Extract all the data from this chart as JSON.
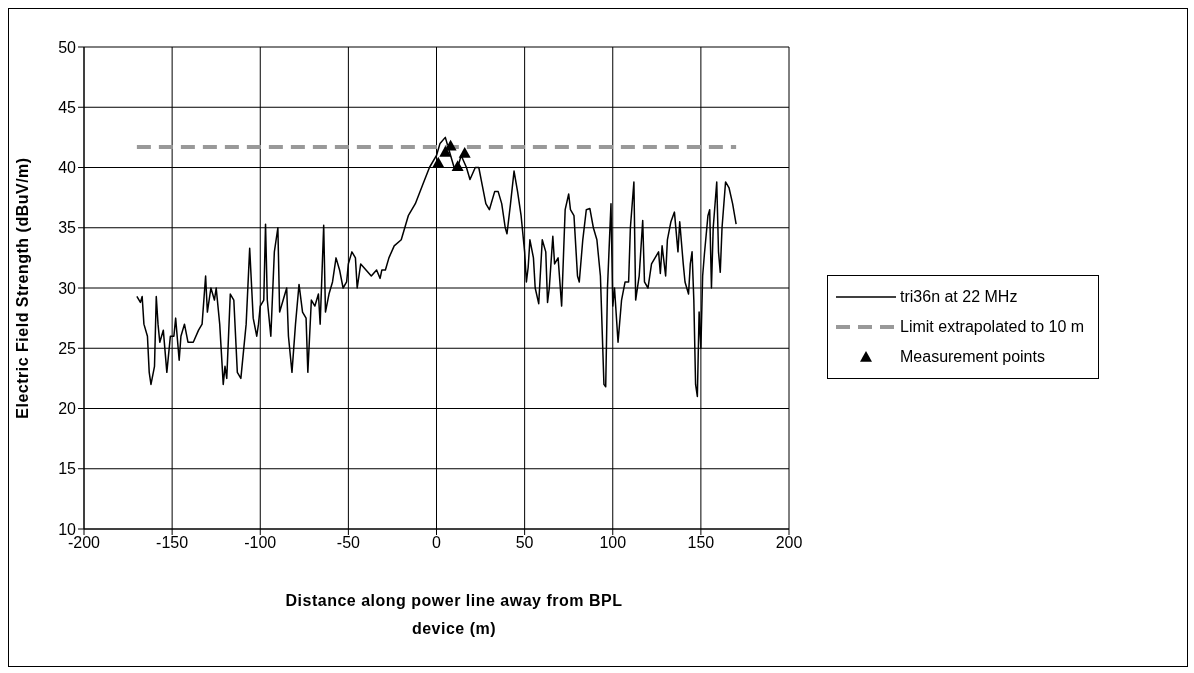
{
  "chart_data": {
    "type": "line",
    "xlabel": "Distance along power line away from BPL device (m)",
    "ylabel": "Electric Field Strength (dBuV/m)",
    "xlim": [
      -200,
      200
    ],
    "xticks": [
      -200,
      -150,
      -100,
      -50,
      0,
      50,
      100,
      150,
      200
    ],
    "ylim": [
      10,
      50
    ],
    "yticks": [
      10,
      15,
      20,
      25,
      30,
      35,
      40,
      45,
      50
    ],
    "grid": true,
    "legend": "right",
    "series": [
      {
        "name": "tri36n at 22 MHz",
        "color": "#000000",
        "line_style": "solid",
        "marker": "none",
        "x": [
          -170,
          -168,
          -167,
          -166,
          -164,
          -163,
          -162,
          -160,
          -159,
          -158,
          -157,
          -155,
          -153,
          -151,
          -149,
          -148,
          -146,
          -145,
          -143,
          -141,
          -138,
          -135,
          -133,
          -131,
          -130,
          -128,
          -126,
          -125,
          -123,
          -121,
          -120,
          -119,
          -117,
          -115,
          -113,
          -111,
          -108,
          -106,
          -104,
          -102,
          -101,
          -100,
          -98,
          -97,
          -96,
          -94,
          -92,
          -90,
          -89,
          -87,
          -85,
          -84,
          -82,
          -80,
          -78,
          -76,
          -74,
          -73,
          -71,
          -69,
          -67,
          -66,
          -64,
          -63,
          -61,
          -59,
          -57,
          -55,
          -53,
          -51,
          -50,
          -48,
          -46,
          -45,
          -43,
          -40,
          -37,
          -34,
          -32,
          -31,
          -29,
          -27,
          -24,
          -20,
          -16,
          -12,
          -8,
          -4,
          0,
          2,
          5,
          8,
          10,
          12,
          14,
          17,
          19,
          22,
          24,
          26,
          28,
          30,
          33,
          35,
          37,
          39,
          40,
          42,
          44,
          46,
          48,
          50,
          51,
          52,
          53,
          55,
          56,
          58,
          60,
          62,
          63,
          64,
          66,
          67,
          69,
          71,
          73,
          75,
          76,
          78,
          80,
          81,
          83,
          85,
          87,
          89,
          91,
          93,
          95,
          96,
          97,
          99,
          100,
          101,
          103,
          105,
          107,
          109,
          110,
          112,
          113,
          115,
          117,
          118,
          120,
          122,
          124,
          126,
          127,
          128,
          130,
          131,
          133,
          135,
          137,
          138,
          140,
          141,
          143,
          144,
          145,
          146,
          147,
          148,
          149,
          150,
          151,
          152,
          154,
          155,
          156,
          157,
          159,
          160,
          161,
          162,
          164,
          166,
          168,
          170
        ],
        "values": [
          29.3,
          28.8,
          29.3,
          27,
          26,
          23,
          22,
          23.5,
          29.3,
          27,
          25.5,
          26.5,
          23,
          26,
          26,
          27.5,
          24,
          26,
          27,
          25.5,
          25.5,
          26.5,
          27,
          31,
          28,
          30,
          29,
          30,
          27,
          22,
          23.5,
          22.5,
          29.5,
          29,
          23,
          22.5,
          27,
          33.3,
          27.5,
          26,
          27,
          28.5,
          29,
          35.3,
          29,
          26,
          33,
          35,
          28,
          29,
          30,
          26,
          23,
          27,
          30.3,
          28,
          27.5,
          23,
          29,
          28.5,
          29.5,
          27,
          35.2,
          28,
          29.5,
          30.5,
          32.5,
          31.5,
          30,
          30.5,
          32,
          33,
          32.5,
          30,
          32,
          31.5,
          31,
          31.5,
          30.8,
          31.5,
          31.5,
          32.5,
          33.5,
          34,
          36,
          37,
          38.5,
          40,
          41,
          42,
          42.5,
          41,
          40,
          40,
          41,
          40,
          39,
          40,
          40,
          38.5,
          37,
          36.5,
          38,
          38,
          37,
          35,
          34.5,
          37,
          39.7,
          38,
          36,
          33,
          30.5,
          31.7,
          34,
          32.5,
          30,
          28.7,
          34,
          33,
          28.8,
          30,
          34.3,
          32,
          32.5,
          28.5,
          36.5,
          37.8,
          36.5,
          36,
          31,
          30.5,
          34,
          36.5,
          36.6,
          35,
          34,
          31,
          22,
          21.8,
          30,
          37,
          28.5,
          30,
          25.5,
          29,
          30.5,
          30.5,
          35,
          38.8,
          29,
          31,
          35.6,
          30.5,
          30,
          32,
          32.5,
          33,
          31.2,
          33.5,
          31,
          34,
          35.5,
          36.3,
          33,
          35.5,
          32,
          30.5,
          29.5,
          32,
          33,
          29,
          22,
          21,
          28,
          25,
          31,
          32.8,
          36,
          36.5,
          30,
          35,
          38.8,
          33,
          31.3,
          35,
          38.8,
          38.3,
          37,
          35.3
        ]
      },
      {
        "name": "Limit extrapolated to 10 m",
        "type": "line",
        "color": "#999999",
        "line_style": "dashed",
        "marker": "none",
        "x": [
          -170,
          170
        ],
        "values": [
          41.7,
          41.7
        ]
      },
      {
        "name": "Measurement points",
        "type": "scatter",
        "color": "#000000",
        "marker": "triangle",
        "x": [
          1,
          5,
          8,
          12,
          16
        ],
        "values": [
          40.4,
          41.3,
          41.8,
          40.1,
          41.2
        ]
      }
    ]
  }
}
